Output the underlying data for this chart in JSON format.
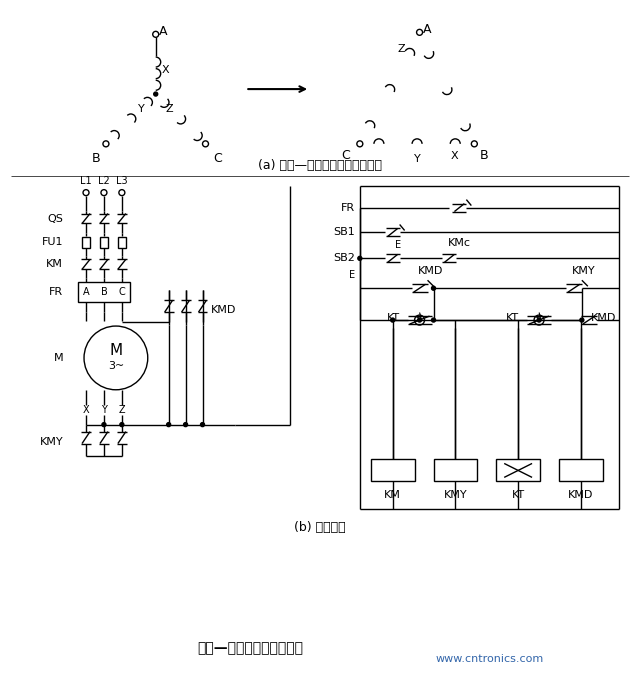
{
  "title_bottom": "星形—三角形启动控制线路",
  "subtitle_a": "(a) 星形—三角形转换绕组连接图",
  "subtitle_b": "(b) 控制线路",
  "website": "www.cntronics.com",
  "bg_color": "#ffffff",
  "line_color": "#000000",
  "figsize": [
    6.4,
    6.75
  ],
  "dpi": 100
}
